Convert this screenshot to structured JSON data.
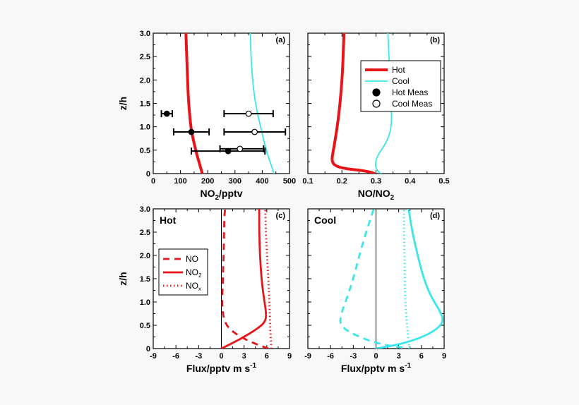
{
  "colors": {
    "hot": "#e8141a",
    "cool": "#38e6ec",
    "axis": "#000000",
    "background": "#ffffff"
  },
  "chart_data": [
    {
      "panel": "(a)",
      "type": "line",
      "xlabel": "NO",
      "xlabel_sub": "2",
      "xlabel_tail": "/pptv",
      "ylabel": "z/h",
      "xlim": [
        0,
        500
      ],
      "ylim": [
        0,
        3
      ],
      "xticks": [
        "0",
        "100",
        "200",
        "300",
        "400",
        "500"
      ],
      "yticks": [
        "0",
        "0.5",
        "1.0",
        "1.5",
        "2.0",
        "2.5",
        "3.0"
      ],
      "series": [
        {
          "name": "Hot",
          "style": "thick",
          "color": "hot",
          "points": [
            [
              180,
              0
            ],
            [
              175,
              0.1
            ],
            [
              168,
              0.25
            ],
            [
              160,
              0.4
            ],
            [
              152,
              0.6
            ],
            [
              144,
              0.8
            ],
            [
              138,
              1.0
            ],
            [
              133,
              1.3
            ],
            [
              129,
              1.6
            ],
            [
              126,
              2.0
            ],
            [
              123,
              2.5
            ],
            [
              120,
              3.0
            ]
          ]
        },
        {
          "name": "Cool",
          "style": "thin",
          "color": "cool",
          "points": [
            [
              443,
              0
            ],
            [
              432,
              0.2
            ],
            [
              417,
              0.45
            ],
            [
              404,
              0.75
            ],
            [
              392,
              1.05
            ],
            [
              380,
              1.35
            ],
            [
              370,
              1.7
            ],
            [
              363,
              2.1
            ],
            [
              359,
              2.5
            ],
            [
              356,
              3.0
            ]
          ]
        }
      ],
      "measurements": [
        {
          "name": "Hot Meas",
          "filled": true,
          "x": 50,
          "y": 1.28,
          "xerr": [
            30,
            70
          ]
        },
        {
          "name": "Hot Meas",
          "filled": true,
          "x": 140,
          "y": 0.89,
          "xerr": [
            75,
            205
          ]
        },
        {
          "name": "Hot Meas",
          "filled": true,
          "x": 275,
          "y": 0.48,
          "xerr": [
            140,
            410
          ]
        },
        {
          "name": "Cool Meas",
          "filled": false,
          "x": 350,
          "y": 1.28,
          "xerr": [
            260,
            440
          ]
        },
        {
          "name": "Cool Meas",
          "filled": false,
          "x": 372,
          "y": 0.89,
          "xerr": [
            260,
            485
          ]
        },
        {
          "name": "Cool Meas",
          "filled": false,
          "x": 318,
          "y": 0.53,
          "xerr": [
            245,
            405
          ]
        }
      ]
    },
    {
      "panel": "(b)",
      "type": "line",
      "xlabel": "NO/NO",
      "xlabel_sub": "2",
      "xlim": [
        0.1,
        0.5
      ],
      "ylim": [
        0,
        3
      ],
      "xticks": [
        "0.1",
        "0.2",
        "0.3",
        "0.4",
        "0.5"
      ],
      "legend": [
        "Hot",
        "Cool",
        "Hot Meas",
        "Cool Meas"
      ],
      "legend_position": "top-right",
      "series": [
        {
          "name": "Hot",
          "style": "thick",
          "color": "hot",
          "points": [
            [
              0.295,
              0
            ],
            [
              0.285,
              0.03
            ],
            [
              0.255,
              0.07
            ],
            [
              0.215,
              0.1
            ],
            [
              0.19,
              0.14
            ],
            [
              0.175,
              0.2
            ],
            [
              0.17,
              0.3
            ],
            [
              0.175,
              0.5
            ],
            [
              0.182,
              0.8
            ],
            [
              0.19,
              1.2
            ],
            [
              0.197,
              1.7
            ],
            [
              0.202,
              2.2
            ],
            [
              0.206,
              3.0
            ]
          ]
        },
        {
          "name": "Cool",
          "style": "thin",
          "color": "cool",
          "points": [
            [
              0.315,
              0
            ],
            [
              0.305,
              0.05
            ],
            [
              0.298,
              0.15
            ],
            [
              0.3,
              0.3
            ],
            [
              0.31,
              0.45
            ],
            [
              0.325,
              0.6
            ],
            [
              0.338,
              0.8
            ],
            [
              0.345,
              1.0
            ],
            [
              0.346,
              1.3
            ],
            [
              0.343,
              1.6
            ],
            [
              0.341,
              2.0
            ],
            [
              0.338,
              2.5
            ],
            [
              0.335,
              3.0
            ]
          ]
        }
      ]
    },
    {
      "panel": "(c)",
      "type": "line",
      "corner_label": "Hot",
      "xlabel": "Flux/pptv m s",
      "xlabel_sup": "-1",
      "ylabel": "z/h",
      "xlim": [
        -9,
        9
      ],
      "ylim": [
        0,
        3
      ],
      "xticks": [
        "-9",
        "-6",
        "-3",
        "0",
        "3",
        "6",
        "9"
      ],
      "yticks": [
        "0",
        "0.5",
        "1.0",
        "1.5",
        "2.0",
        "2.5",
        "3.0"
      ],
      "legend": [
        "NO",
        "NO2",
        "NOx"
      ],
      "legend_position": "left-middle",
      "series": [
        {
          "name": "NO",
          "style": "dashed",
          "color": "hot",
          "points": [
            [
              6.2,
              0
            ],
            [
              4.5,
              0.1
            ],
            [
              2.5,
              0.25
            ],
            [
              0.8,
              0.45
            ],
            [
              0.2,
              0.7
            ],
            [
              0.1,
              1.0
            ],
            [
              0.2,
              1.5
            ],
            [
              0.3,
              2.0
            ],
            [
              0.35,
              2.5
            ],
            [
              0.4,
              2.85
            ],
            [
              0.5,
              3.0
            ]
          ]
        },
        {
          "name": "NO2",
          "style": "solid",
          "color": "hot",
          "points": [
            [
              0,
              0
            ],
            [
              2.5,
              0.2
            ],
            [
              5.0,
              0.45
            ],
            [
              5.9,
              0.6
            ],
            [
              5.9,
              0.8
            ],
            [
              5.6,
              1.1
            ],
            [
              5.3,
              1.5
            ],
            [
              5.1,
              2.0
            ],
            [
              5.0,
              2.5
            ],
            [
              5.0,
              3.0
            ]
          ]
        },
        {
          "name": "NOx",
          "style": "dotted",
          "color": "hot",
          "points": [
            [
              6.6,
              0
            ],
            [
              6.5,
              0.3
            ],
            [
              6.4,
              0.7
            ],
            [
              6.3,
              1.2
            ],
            [
              6.1,
              1.8
            ],
            [
              5.9,
              2.4
            ],
            [
              5.8,
              3.0
            ]
          ]
        }
      ]
    },
    {
      "panel": "(d)",
      "type": "line",
      "corner_label": "Cool",
      "xlabel": "Flux/pptv m s",
      "xlabel_sup": "-1",
      "xlim": [
        -9,
        9
      ],
      "ylim": [
        0,
        3
      ],
      "xticks": [
        "-9",
        "-6",
        "-3",
        "0",
        "3",
        "6",
        "9"
      ],
      "series": [
        {
          "name": "NO",
          "style": "dashed",
          "color": "cool",
          "points": [
            [
              3.5,
              0.02
            ],
            [
              0.3,
              0.1
            ],
            [
              -3.0,
              0.3
            ],
            [
              -4.8,
              0.5
            ],
            [
              -4.6,
              0.75
            ],
            [
              -3.8,
              1.1
            ],
            [
              -3.0,
              1.5
            ],
            [
              -2.2,
              2.0
            ],
            [
              -1.3,
              2.5
            ],
            [
              -0.3,
              3.0
            ]
          ]
        },
        {
          "name": "NO2",
          "style": "solid",
          "color": "cool",
          "points": [
            [
              0,
              0
            ],
            [
              3.5,
              0.1
            ],
            [
              7.0,
              0.3
            ],
            [
              9.0,
              0.55
            ],
            [
              8.5,
              0.8
            ],
            [
              7.3,
              1.1
            ],
            [
              6.3,
              1.5
            ],
            [
              5.5,
              2.0
            ],
            [
              4.8,
              2.5
            ],
            [
              4.3,
              3.0
            ]
          ]
        },
        {
          "name": "NOx",
          "style": "dotted",
          "color": "cool",
          "points": [
            [
              4.4,
              0
            ],
            [
              4.2,
              0.3
            ],
            [
              4.0,
              0.7
            ],
            [
              3.8,
              1.2
            ],
            [
              3.8,
              1.8
            ],
            [
              3.7,
              2.4
            ],
            [
              3.7,
              3.0
            ]
          ]
        }
      ]
    }
  ]
}
